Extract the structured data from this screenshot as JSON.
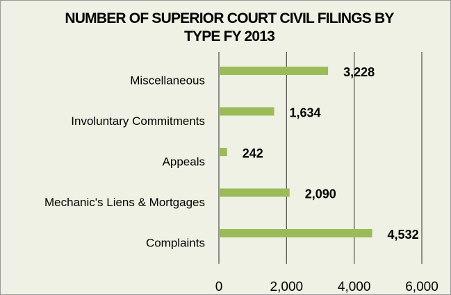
{
  "chart_data": {
    "type": "bar",
    "orientation": "horizontal",
    "title": "NUMBER OF SUPERIOR COURT CIVIL FILINGS BY TYPE FY 2013",
    "categories": [
      "Miscellaneous",
      "Involuntary Commitments",
      "Appeals",
      "Mechanic's Liens & Mortgages",
      "Complaints"
    ],
    "values": [
      3228,
      1634,
      242,
      2090,
      4532
    ],
    "value_labels": [
      "3,228",
      "1,634",
      "242",
      "2,090",
      "4,532"
    ],
    "color": "#9bbb59",
    "xlim": [
      0,
      6000
    ],
    "xticks": [
      0,
      {
        "value": 2000,
        "label": "2,000"
      },
      {
        "value": 4000,
        "label": "4,000"
      },
      {
        "value": 6000,
        "label": "6,000"
      }
    ],
    "grid": true
  }
}
